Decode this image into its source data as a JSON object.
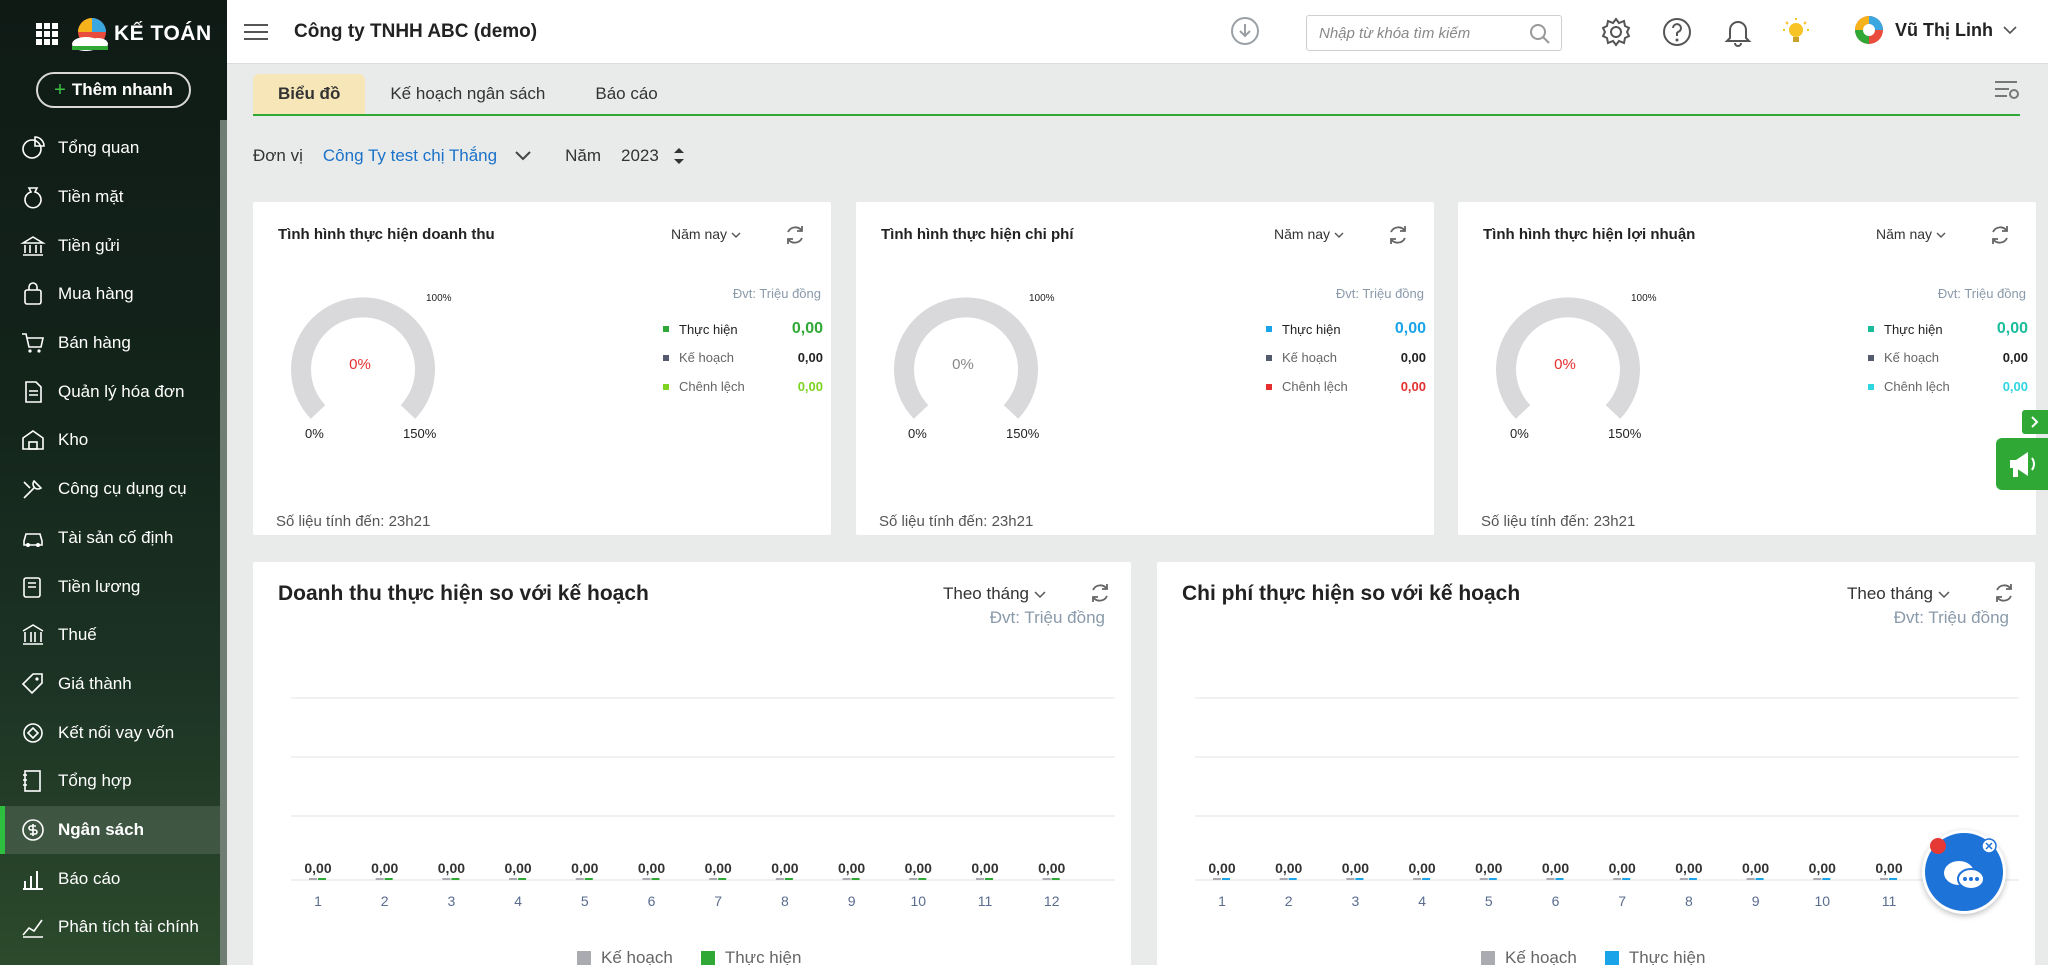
{
  "brand": {
    "name": "KẾ TOÁN",
    "quick_add": "Thêm nhanh"
  },
  "sidebar": {
    "items": [
      {
        "label": "Tổng quan",
        "icon": "pie-chart-icon"
      },
      {
        "label": "Tiền mặt",
        "icon": "money-bag-icon"
      },
      {
        "label": "Tiền gửi",
        "icon": "bank-icon"
      },
      {
        "label": "Mua hàng",
        "icon": "shopping-bag-icon"
      },
      {
        "label": "Bán hàng",
        "icon": "cart-icon"
      },
      {
        "label": "Quản lý hóa đơn",
        "icon": "invoice-icon"
      },
      {
        "label": "Kho",
        "icon": "warehouse-icon"
      },
      {
        "label": "Công cụ dụng cụ",
        "icon": "tools-icon"
      },
      {
        "label": "Tài sản cố định",
        "icon": "car-icon"
      },
      {
        "label": "Tiền lương",
        "icon": "payroll-icon"
      },
      {
        "label": "Thuế",
        "icon": "tax-building-icon"
      },
      {
        "label": "Giá thành",
        "icon": "price-tag-icon"
      },
      {
        "label": "Kết nối vay vốn",
        "icon": "loan-icon"
      },
      {
        "label": "Tổng hợp",
        "icon": "ledger-icon"
      },
      {
        "label": "Ngân sách",
        "icon": "budget-icon"
      },
      {
        "label": "Báo cáo",
        "icon": "bar-report-icon"
      },
      {
        "label": "Phân tích tài chính",
        "icon": "analysis-icon"
      }
    ],
    "active_index": 14
  },
  "header": {
    "company": "Công ty TNHH ABC (demo)",
    "search_placeholder": "Nhập từ khóa tìm kiếm",
    "user_name": "Vũ Thị Linh"
  },
  "tabs": [
    "Biểu đồ",
    "Kế hoạch ngân sách",
    "Báo cáo"
  ],
  "filters": {
    "unit_label": "Đơn vị",
    "unit_value": "Công Ty test chị Thắng",
    "year_label": "Năm",
    "year_value": "2023"
  },
  "gauges": [
    {
      "title": "Tình hình thực hiện doanh thu",
      "period": "Năm nay",
      "unit": "Đvt: Triệu đồng",
      "percent": "0%",
      "percent_color": "#e52e2e",
      "min_label": "0%",
      "max_label": "150%",
      "mid_label": "100%",
      "legend": [
        {
          "label": "Thực hiện",
          "value": "0,00",
          "color": "#2fa836",
          "value_color": "#2fa836"
        },
        {
          "label": "Kế hoạch",
          "value": "0,00",
          "color": "#555b6e",
          "value_color": "#222"
        },
        {
          "label": "Chênh lệch",
          "value": "0,00",
          "color": "#7ed321",
          "value_color": "#7ed321"
        }
      ],
      "footer": "Số liệu tính đến: 23h21"
    },
    {
      "title": "Tình hình thực hiện chi phí",
      "period": "Năm nay",
      "unit": "Đvt: Triệu đồng",
      "percent": "0%",
      "percent_color": "#888888",
      "min_label": "0%",
      "max_label": "150%",
      "mid_label": "100%",
      "legend": [
        {
          "label": "Thực hiện",
          "value": "0,00",
          "color": "#1aa3e8",
          "value_color": "#1aa3e8"
        },
        {
          "label": "Kế hoạch",
          "value": "0,00",
          "color": "#555b6e",
          "value_color": "#222"
        },
        {
          "label": "Chênh lệch",
          "value": "0,00",
          "color": "#e52e2e",
          "value_color": "#e52e2e"
        }
      ],
      "footer": "Số liệu tính đến: 23h21"
    },
    {
      "title": "Tình hình thực hiện lợi nhuận",
      "period": "Năm nay",
      "unit": "Đvt: Triệu đồng",
      "percent": "0%",
      "percent_color": "#e52e2e",
      "min_label": "0%",
      "max_label": "150%",
      "mid_label": "100%",
      "legend": [
        {
          "label": "Thực hiện",
          "value": "0,00",
          "color": "#1abc9c",
          "value_color": "#1abc9c"
        },
        {
          "label": "Kế hoạch",
          "value": "0,00",
          "color": "#555b6e",
          "value_color": "#222"
        },
        {
          "label": "Chênh lệch",
          "value": "0,00",
          "color": "#2ed6e0",
          "value_color": "#2ed6e0"
        }
      ],
      "footer": "Số liệu tính đến: 23h21"
    }
  ],
  "chart_data": [
    {
      "type": "bar",
      "title": "Doanh thu thực hiện so với kế hoạch",
      "period": "Theo tháng",
      "unit": "Đvt: Triệu đồng",
      "categories": [
        "1",
        "2",
        "3",
        "4",
        "5",
        "6",
        "7",
        "8",
        "9",
        "10",
        "11",
        "12"
      ],
      "series": [
        {
          "name": "Kế hoạch",
          "color": "#a9abb0",
          "values": [
            0,
            0,
            0,
            0,
            0,
            0,
            0,
            0,
            0,
            0,
            0,
            0
          ]
        },
        {
          "name": "Thực hiện",
          "color": "#2fa836",
          "values": [
            0,
            0,
            0,
            0,
            0,
            0,
            0,
            0,
            0,
            0,
            0,
            0
          ]
        }
      ],
      "data_labels": [
        "0,00",
        "0,00",
        "0,00",
        "0,00",
        "0,00",
        "0,00",
        "0,00",
        "0,00",
        "0,00",
        "0,00",
        "0,00",
        "0,00"
      ]
    },
    {
      "type": "bar",
      "title": "Chi phí thực hiện so với kế hoạch",
      "period": "Theo tháng",
      "unit": "Đvt: Triệu đồng",
      "categories": [
        "1",
        "2",
        "3",
        "4",
        "5",
        "6",
        "7",
        "8",
        "9",
        "10",
        "11"
      ],
      "series": [
        {
          "name": "Kế hoạch",
          "color": "#a9abb0",
          "values": [
            0,
            0,
            0,
            0,
            0,
            0,
            0,
            0,
            0,
            0,
            0
          ]
        },
        {
          "name": "Thực hiện",
          "color": "#1aa3e8",
          "values": [
            0,
            0,
            0,
            0,
            0,
            0,
            0,
            0,
            0,
            0,
            0
          ]
        }
      ],
      "data_labels": [
        "0,00",
        "0,00",
        "0,00",
        "0,00",
        "0,00",
        "0,00",
        "0,00",
        "0,00",
        "0,00",
        "0,00",
        "0,00"
      ]
    }
  ]
}
